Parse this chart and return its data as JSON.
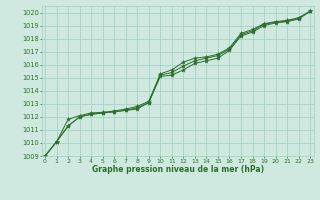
{
  "title": "Graphe pression niveau de la mer (hPa)",
  "background_color": "#cfe9e0",
  "grid_color": "#9ecfbe",
  "line_color": "#2d6e2d",
  "x_values": [
    0,
    1,
    2,
    3,
    4,
    5,
    6,
    7,
    8,
    9,
    10,
    11,
    12,
    13,
    14,
    15,
    16,
    17,
    18,
    19,
    20,
    21,
    22,
    23
  ],
  "line1": [
    1009.0,
    1010.1,
    1011.3,
    1012.0,
    1012.2,
    1012.3,
    1012.4,
    1012.5,
    1012.6,
    1013.1,
    1015.1,
    1015.2,
    1015.6,
    1016.1,
    1016.3,
    1016.5,
    1017.1,
    1018.2,
    1018.5,
    1019.0,
    1019.2,
    1019.3,
    1019.5,
    1020.1
  ],
  "line2": [
    1009.0,
    1010.1,
    1011.3,
    1012.0,
    1012.2,
    1012.3,
    1012.4,
    1012.5,
    1012.7,
    1013.1,
    1015.2,
    1015.4,
    1015.9,
    1016.3,
    1016.5,
    1016.7,
    1017.2,
    1018.3,
    1018.6,
    1019.1,
    1019.25,
    1019.35,
    1019.55,
    1020.1
  ],
  "line3": [
    1009.0,
    1010.1,
    1011.8,
    1012.1,
    1012.3,
    1012.35,
    1012.45,
    1012.6,
    1012.8,
    1013.2,
    1015.3,
    1015.6,
    1016.2,
    1016.5,
    1016.6,
    1016.8,
    1017.3,
    1018.4,
    1018.7,
    1019.15,
    1019.3,
    1019.4,
    1019.6,
    1020.1
  ],
  "xlim": [
    -0.3,
    23.3
  ],
  "ylim": [
    1009.0,
    1020.5
  ],
  "yticks": [
    1009,
    1010,
    1011,
    1012,
    1013,
    1014,
    1015,
    1016,
    1017,
    1018,
    1019,
    1020
  ],
  "xticks": [
    0,
    1,
    2,
    3,
    4,
    5,
    6,
    7,
    8,
    9,
    10,
    11,
    12,
    13,
    14,
    15,
    16,
    17,
    18,
    19,
    20,
    21,
    22,
    23
  ]
}
